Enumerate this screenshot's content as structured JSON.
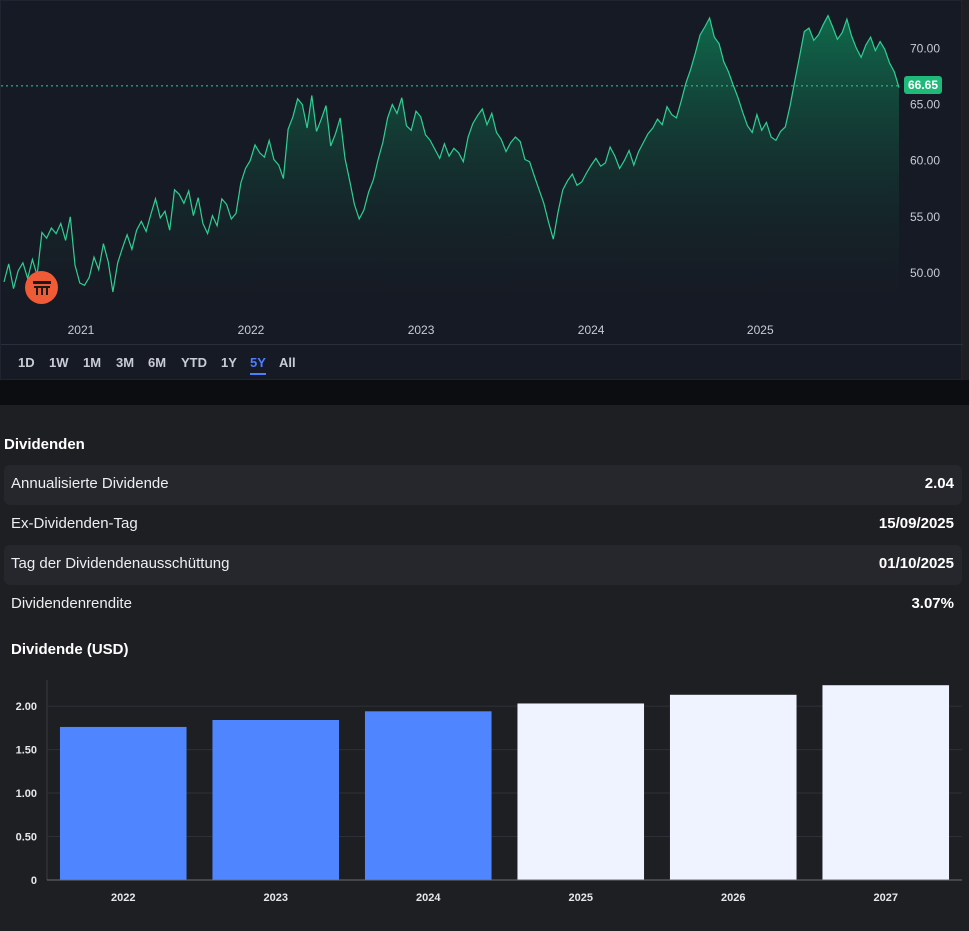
{
  "price_chart": {
    "type": "area",
    "x_labels": [
      "2021",
      "2022",
      "2023",
      "2024",
      "2025"
    ],
    "y_ticks": [
      "70.00",
      "65.00",
      "60.00",
      "55.00",
      "50.00"
    ],
    "ylim": [
      47.5,
      73.5
    ],
    "current_value": "66.65",
    "line_color": "#2fcf92",
    "area_color_top": "#0f6f4e",
    "series": [
      49.2,
      50.8,
      48.6,
      50.2,
      50.9,
      49.5,
      51.2,
      49.8,
      53.6,
      53.1,
      54.0,
      53.5,
      54.4,
      52.9,
      55.0,
      50.7,
      49.1,
      48.9,
      49.6,
      51.4,
      50.3,
      52.6,
      51.0,
      48.3,
      50.9,
      52.2,
      53.4,
      52.1,
      53.8,
      54.6,
      53.7,
      55.2,
      56.6,
      54.9,
      55.5,
      53.8,
      57.4,
      57.0,
      56.2,
      57.3,
      55.1,
      56.7,
      54.4,
      53.5,
      55.1,
      54.2,
      56.6,
      56.1,
      54.8,
      55.3,
      58.0,
      59.3,
      60.0,
      61.4,
      60.7,
      60.3,
      61.8,
      60.1,
      59.6,
      58.4,
      62.8,
      63.9,
      65.5,
      65.0,
      62.9,
      65.8,
      62.6,
      63.7,
      64.9,
      61.3,
      62.4,
      63.8,
      60.2,
      58.2,
      56.1,
      54.8,
      55.6,
      57.2,
      58.3,
      60.1,
      61.6,
      63.8,
      65.0,
      64.2,
      65.6,
      63.1,
      62.7,
      64.4,
      63.9,
      62.3,
      61.8,
      61.0,
      60.2,
      61.5,
      60.4,
      61.1,
      60.7,
      59.9,
      62.1,
      63.3,
      64.0,
      64.6,
      63.2,
      64.2,
      62.5,
      61.9,
      60.8,
      61.6,
      62.1,
      61.7,
      60.1,
      59.9,
      58.6,
      57.4,
      56.2,
      54.5,
      53.0,
      55.4,
      57.4,
      58.2,
      58.8,
      57.8,
      58.1,
      58.9,
      59.6,
      60.2,
      59.5,
      59.8,
      61.2,
      60.4,
      59.3,
      60.0,
      60.9,
      59.6,
      60.8,
      61.6,
      62.4,
      62.9,
      63.7,
      63.2,
      64.8,
      64.1,
      63.8,
      65.3,
      66.9,
      68.1,
      69.6,
      71.2,
      71.9,
      72.7,
      71.0,
      70.4,
      68.8,
      67.9,
      66.7,
      65.6,
      64.3,
      63.1,
      62.5,
      64.1,
      62.7,
      63.4,
      62.1,
      61.8,
      62.6,
      63.0,
      64.9,
      67.1,
      69.3,
      71.5,
      71.8,
      70.7,
      71.2,
      72.1,
      72.9,
      71.9,
      70.8,
      71.4,
      72.6,
      71.1,
      70.0,
      69.2,
      70.3,
      71.0,
      69.8,
      70.6,
      69.9,
      68.7,
      67.9,
      66.5
    ]
  },
  "range_tabs": {
    "items": [
      "1D",
      "1W",
      "1M",
      "3M",
      "6M",
      "YTD",
      "1Y",
      "5Y",
      "All"
    ],
    "active": "5Y"
  },
  "dividends": {
    "heading": "Dividenden",
    "rows": [
      {
        "label": "Annualisierte Dividende",
        "value": "2.04"
      },
      {
        "label": "Ex-Dividenden-Tag",
        "value": "15/09/2025"
      },
      {
        "label": "Tag der Dividendenausschüttung",
        "value": "01/10/2025"
      },
      {
        "label": "Dividendenrendite",
        "value": "3.07%"
      }
    ]
  },
  "chart_data": {
    "type": "bar",
    "title": "Dividende (USD)",
    "categories": [
      "2022",
      "2023",
      "2024",
      "2025",
      "2026",
      "2027"
    ],
    "values": [
      1.76,
      1.84,
      1.94,
      2.03,
      2.13,
      2.24
    ],
    "bar_colors": [
      "#4f86ff",
      "#4f86ff",
      "#4f86ff",
      "#eef3ff",
      "#eef3ff",
      "#eef3ff"
    ],
    "ylim": [
      0,
      2.3
    ],
    "y_ticks": [
      "0",
      "0.50",
      "1.00",
      "1.50",
      "2.00"
    ],
    "grid": true
  }
}
